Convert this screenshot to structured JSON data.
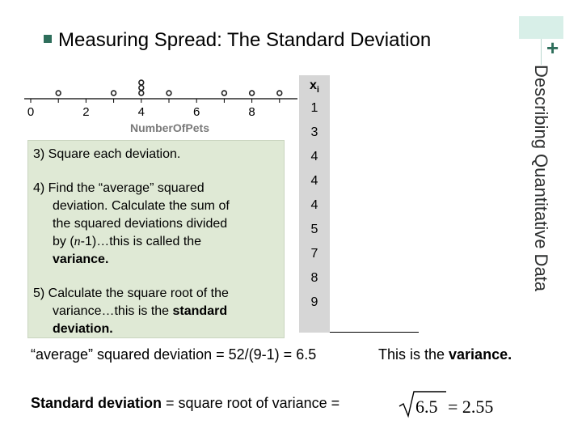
{
  "header": {
    "title": "Measuring Spread: The Standard Deviation",
    "side_title": "Describing Quantitative Data",
    "corner_mark": "+"
  },
  "dotplot": {
    "axis_label": "NumberOfPets",
    "ticks": [
      "0",
      "2",
      "4",
      "6",
      "8"
    ],
    "values": [
      1,
      3,
      4,
      4,
      4,
      5,
      7,
      8,
      9
    ]
  },
  "steps": {
    "step3": "3) Square each deviation.",
    "step4_line1": "4) Find the “average” squared",
    "step4_line2": "deviation. Calculate the sum of",
    "step4_line3": "the squared deviations divided",
    "step4_line4_pre": "by (",
    "step4_line4_n": "n",
    "step4_line4_post": "-1)…this is called the",
    "step4_line5": "variance.",
    "step5_line1": "5) Calculate the square root of the",
    "step5_line2_pre": "variance…this is the ",
    "step5_line2_bold": "standard",
    "step5_line3": "deviation."
  },
  "table": {
    "header": "x",
    "header_sub": "i",
    "values": [
      "1",
      "3",
      "4",
      "4",
      "4",
      "5",
      "7",
      "8",
      "9"
    ]
  },
  "results": {
    "average_line": "“average” squared deviation = 52/(9-1) = 6.5",
    "variance_note_pre": "This is the ",
    "variance_note_bold": "variance.",
    "sd_bold": "Standard deviation",
    "sd_rest": " = square root of variance =",
    "sd_sqrt_arg": "6.5",
    "sd_result": "= 2.55"
  }
}
